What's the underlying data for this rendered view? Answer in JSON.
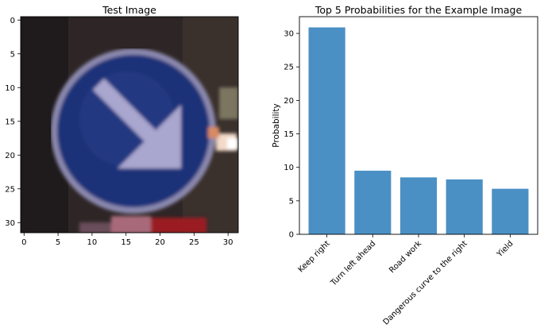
{
  "left_panel": {
    "title": "Test Image",
    "xticks": [
      "0",
      "5",
      "10",
      "15",
      "20",
      "25",
      "30"
    ],
    "yticks": [
      "0",
      "5",
      "10",
      "15",
      "20",
      "25",
      "30"
    ]
  },
  "chart_data": {
    "type": "bar",
    "title": "Top 5 Probabilities for the Example Image",
    "xlabel": "",
    "ylabel": "Probability",
    "categories": [
      "Keep right",
      "Turn left ahead",
      "Road work",
      "Dangerous curve to the right",
      "Yield"
    ],
    "values": [
      30.9,
      9.5,
      8.5,
      8.2,
      6.8
    ],
    "ylim": [
      0,
      32.5
    ],
    "yticks": [
      0,
      5,
      10,
      15,
      20,
      25,
      30
    ],
    "bar_color": "#4a90c4",
    "grid": false
  }
}
